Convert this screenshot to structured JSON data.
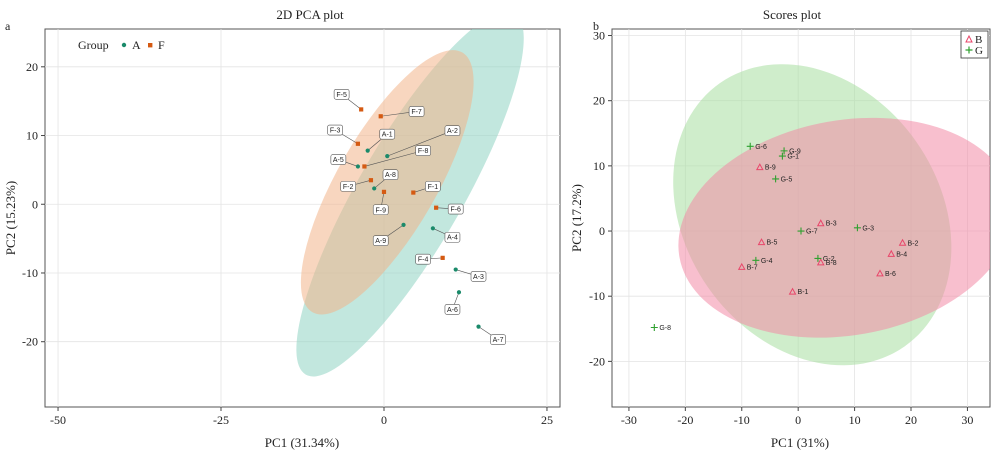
{
  "chart_data": [
    {
      "panel": "a",
      "type": "scatter",
      "title": "2D PCA plot",
      "xlabel": "PC1 (31.34%)",
      "ylabel": "PC2 (15.23%)",
      "xlim": [
        -52,
        27
      ],
      "ylim": [
        -29.5,
        25.5
      ],
      "xticks": [
        -50,
        -25,
        0,
        25
      ],
      "yticks": [
        -20,
        -10,
        0,
        10,
        20
      ],
      "grid": true,
      "legend": {
        "title": "Group",
        "placement": "top-left",
        "entries": [
          "A",
          "F"
        ]
      },
      "colors": {
        "A": "#1a8a6a",
        "F": "#d55a12",
        "A_ellipse": "#8fd3c3",
        "F_ellipse": "#f2b48a",
        "overlap": "#b8ae7e"
      },
      "ellipses": [
        {
          "group": "A",
          "cx": 4.0,
          "cy": 1.5,
          "rx": 32.0,
          "ry": 7.6,
          "angle_deg": -60
        },
        {
          "group": "F",
          "cx": 0.5,
          "cy": 3.2,
          "rx": 23.0,
          "ry": 7.2,
          "angle_deg": -60
        }
      ],
      "series": [
        {
          "name": "A",
          "points": [
            {
              "label": "A-1",
              "x": -2.5,
              "y": 7.8,
              "lx": 0.5,
              "ly": 10.2
            },
            {
              "label": "A-2",
              "x": 0.5,
              "y": 7.0,
              "lx": 10.5,
              "ly": 10.7
            },
            {
              "label": "A-3",
              "x": 11.0,
              "y": -9.5,
              "lx": 14.5,
              "ly": -10.5
            },
            {
              "label": "A-4",
              "x": 7.5,
              "y": -3.5,
              "lx": 10.5,
              "ly": -4.8
            },
            {
              "label": "A-5",
              "x": -4.0,
              "y": 5.5,
              "lx": -7.0,
              "ly": 6.5
            },
            {
              "label": "A-6",
              "x": 11.5,
              "y": -12.8,
              "lx": 10.5,
              "ly": -15.3
            },
            {
              "label": "A-7",
              "x": 14.5,
              "y": -17.8,
              "lx": 17.5,
              "ly": -19.7
            },
            {
              "label": "A-8",
              "x": -1.5,
              "y": 2.3,
              "lx": 1.0,
              "ly": 4.3
            },
            {
              "label": "A-9",
              "x": 3.0,
              "y": -3.0,
              "lx": -0.5,
              "ly": -5.3
            }
          ]
        },
        {
          "name": "F",
          "points": [
            {
              "label": "F-1",
              "x": 4.5,
              "y": 1.7,
              "lx": 7.5,
              "ly": 2.6
            },
            {
              "label": "F-2",
              "x": -2.0,
              "y": 3.5,
              "lx": -5.5,
              "ly": 2.6
            },
            {
              "label": "F-3",
              "x": -4.0,
              "y": 8.8,
              "lx": -7.5,
              "ly": 10.8
            },
            {
              "label": "F-4",
              "x": 9.0,
              "y": -7.8,
              "lx": 6.0,
              "ly": -8.0
            },
            {
              "label": "F-5",
              "x": -3.5,
              "y": 13.8,
              "lx": -6.5,
              "ly": 16.0
            },
            {
              "label": "F-6",
              "x": 8.0,
              "y": -0.5,
              "lx": 11.0,
              "ly": -0.7
            },
            {
              "label": "F-7",
              "x": -0.5,
              "y": 12.8,
              "lx": 5.0,
              "ly": 13.5
            },
            {
              "label": "F-8",
              "x": -3.0,
              "y": 5.5,
              "lx": 6.0,
              "ly": 7.8
            },
            {
              "label": "F-9",
              "x": 0.0,
              "y": 1.8,
              "lx": -0.5,
              "ly": -0.8
            }
          ]
        }
      ]
    },
    {
      "panel": "b",
      "type": "scatter",
      "title": "Scores plot",
      "xlabel": "PC1 (31%)",
      "ylabel": "PC2 (17.2%)",
      "xlim": [
        -33,
        34
      ],
      "ylim": [
        -27,
        31
      ],
      "xticks": [
        -30,
        -20,
        -10,
        0,
        10,
        20,
        30
      ],
      "yticks": [
        -20,
        -10,
        0,
        10,
        20,
        30
      ],
      "grid": true,
      "legend": {
        "placement": "top-right",
        "entries": [
          "B",
          "G"
        ]
      },
      "colors": {
        "B": "#e8466a",
        "G": "#2fa02f",
        "B_ellipse": "#f28aa6",
        "G_ellipse": "#a7dea0",
        "overlap": "#b1a07e"
      },
      "ellipses": [
        {
          "group": "G",
          "cx": 2.5,
          "cy": 2.5,
          "rx": 28.5,
          "ry": 19.5,
          "angle_deg": 55
        },
        {
          "group": "B",
          "cx": 8.5,
          "cy": 0.5,
          "rx": 30.0,
          "ry": 16.5,
          "angle_deg": -10
        }
      ],
      "series": [
        {
          "name": "B",
          "points": [
            {
              "label": "B-1",
              "x": -1.0,
              "y": -9.3
            },
            {
              "label": "B-2",
              "x": 18.5,
              "y": -1.8
            },
            {
              "label": "B-3",
              "x": 4.0,
              "y": 1.2
            },
            {
              "label": "B-4",
              "x": 16.5,
              "y": -3.5
            },
            {
              "label": "B-5",
              "x": -6.5,
              "y": -1.7
            },
            {
              "label": "B-6",
              "x": 14.5,
              "y": -6.5
            },
            {
              "label": "B-7",
              "x": -10.0,
              "y": -5.5
            },
            {
              "label": "B-8",
              "x": 4.0,
              "y": -4.8
            },
            {
              "label": "B-9",
              "x": -6.8,
              "y": 9.8
            }
          ]
        },
        {
          "name": "G",
          "points": [
            {
              "label": "G-1",
              "x": -2.8,
              "y": 11.5
            },
            {
              "label": "G-2",
              "x": 3.5,
              "y": -4.2
            },
            {
              "label": "G-3",
              "x": 10.5,
              "y": 0.5
            },
            {
              "label": "G-4",
              "x": -7.5,
              "y": -4.5
            },
            {
              "label": "G-5",
              "x": -4.0,
              "y": 8.0
            },
            {
              "label": "G-6",
              "x": -8.5,
              "y": 13.0
            },
            {
              "label": "G-7",
              "x": 0.5,
              "y": 0.0
            },
            {
              "label": "G-8",
              "x": -25.5,
              "y": -14.8
            },
            {
              "label": "G-9",
              "x": -2.5,
              "y": 12.3
            }
          ]
        }
      ]
    }
  ]
}
